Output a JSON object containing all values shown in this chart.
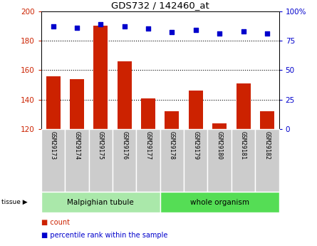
{
  "title": "GDS732 / 142460_at",
  "samples": [
    "GSM29173",
    "GSM29174",
    "GSM29175",
    "GSM29176",
    "GSM29177",
    "GSM29178",
    "GSM29179",
    "GSM29180",
    "GSM29181",
    "GSM29182"
  ],
  "counts": [
    156,
    154,
    190,
    166,
    141,
    132,
    146,
    124,
    151,
    132
  ],
  "percentiles": [
    87,
    86,
    89,
    87,
    85,
    82,
    84,
    81,
    83,
    81
  ],
  "ylim_left": [
    120,
    200
  ],
  "ylim_right": [
    0,
    100
  ],
  "yticks_left": [
    120,
    140,
    160,
    180,
    200
  ],
  "yticks_right": [
    0,
    25,
    50,
    75,
    100
  ],
  "bar_color": "#cc2200",
  "dot_color": "#0000cc",
  "bar_bottom": 120,
  "tissue_groups": [
    {
      "label": "Malpighian tubule",
      "start": 0,
      "end": 5,
      "color": "#aae8aa"
    },
    {
      "label": "whole organism",
      "start": 5,
      "end": 10,
      "color": "#55dd55"
    }
  ],
  "tissue_label": "tissue",
  "legend_items": [
    {
      "label": "count",
      "color": "#cc2200"
    },
    {
      "label": "percentile rank within the sample",
      "color": "#0000cc"
    }
  ],
  "tick_label_bg": "#cccccc",
  "n_samples": 10,
  "grid_yticks": [
    140,
    160,
    180
  ]
}
